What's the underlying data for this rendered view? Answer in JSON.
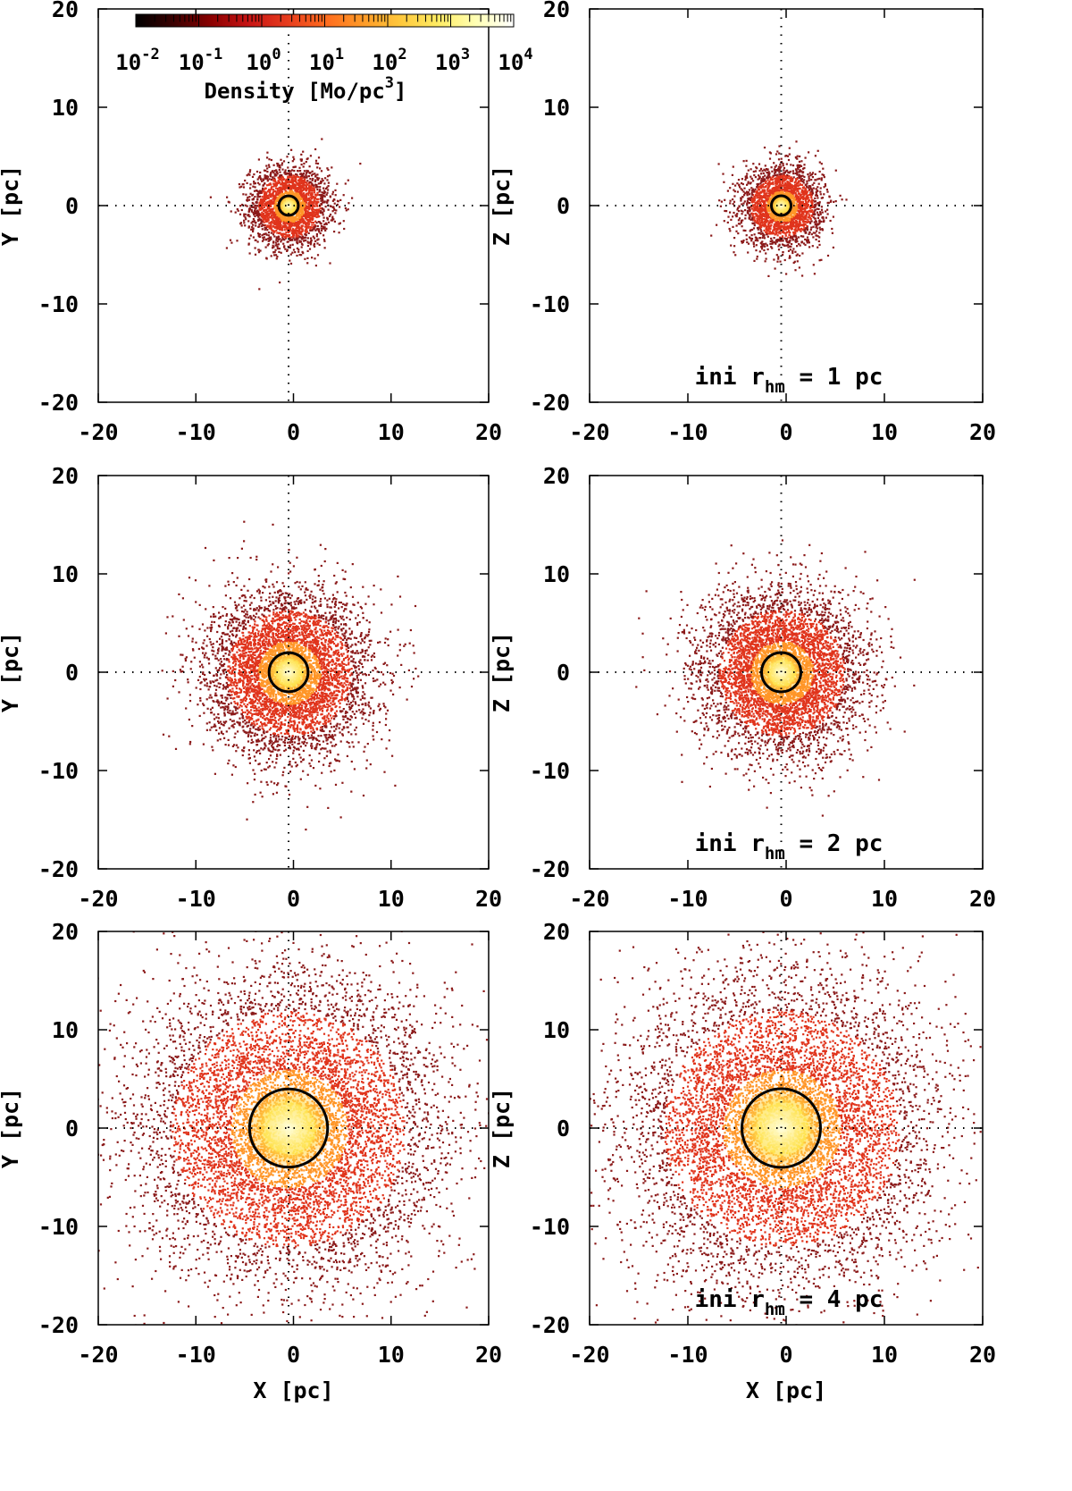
{
  "chart_data": [
    {
      "type": "scatter",
      "panel": "top-left",
      "xlabel": "",
      "ylabel": "Y [pc]",
      "xlim": [
        -20,
        20
      ],
      "ylim": [
        -20,
        20
      ],
      "xticks": [
        "-20",
        "-10",
        "0",
        "10",
        "20"
      ],
      "yticks": [
        "20",
        "10",
        "0",
        "-10",
        "-20"
      ],
      "dispersion_pc": 2.0,
      "half_mass_circle": {
        "center": [
          0,
          0
        ],
        "radius_pc": 1.0
      },
      "annotation": null
    },
    {
      "type": "scatter",
      "panel": "top-right",
      "xlabel": "",
      "ylabel": "Z [pc]",
      "xlim": [
        -20,
        20
      ],
      "ylim": [
        -20,
        20
      ],
      "xticks": [
        "-20",
        "-10",
        "0",
        "10",
        "20"
      ],
      "yticks": [
        "20",
        "10",
        "0",
        "-10",
        "-20"
      ],
      "dispersion_pc": 2.0,
      "half_mass_circle": {
        "center": [
          0,
          0
        ],
        "radius_pc": 1.0
      },
      "annotation": {
        "prefix": "ini r",
        "subscript": "hm",
        "suffix": " = 1 pc"
      }
    },
    {
      "type": "scatter",
      "panel": "middle-left",
      "xlabel": "",
      "ylabel": "Y [pc]",
      "xlim": [
        -20,
        20
      ],
      "ylim": [
        -20,
        20
      ],
      "xticks": [
        "-20",
        "-10",
        "0",
        "10",
        "20"
      ],
      "yticks": [
        "20",
        "10",
        "0",
        "-10",
        "-20"
      ],
      "dispersion_pc": 4.0,
      "half_mass_circle": {
        "center": [
          0,
          0
        ],
        "radius_pc": 2.0
      },
      "annotation": null
    },
    {
      "type": "scatter",
      "panel": "middle-right",
      "xlabel": "",
      "ylabel": "Z [pc]",
      "xlim": [
        -20,
        20
      ],
      "ylim": [
        -20,
        20
      ],
      "xticks": [
        "-20",
        "-10",
        "0",
        "10",
        "20"
      ],
      "yticks": [
        "20",
        "10",
        "0",
        "-10",
        "-20"
      ],
      "dispersion_pc": 4.0,
      "half_mass_circle": {
        "center": [
          0,
          0
        ],
        "radius_pc": 2.0
      },
      "annotation": {
        "prefix": "ini r",
        "subscript": "hm",
        "suffix": " = 2 pc"
      }
    },
    {
      "type": "scatter",
      "panel": "bottom-left",
      "xlabel": "X [pc]",
      "ylabel": "Y [pc]",
      "xlim": [
        -20,
        20
      ],
      "ylim": [
        -20,
        20
      ],
      "xticks": [
        "-20",
        "-10",
        "0",
        "10",
        "20"
      ],
      "yticks": [
        "20",
        "10",
        "0",
        "-10",
        "-20"
      ],
      "dispersion_pc": 7.5,
      "half_mass_circle": {
        "center": [
          0,
          0
        ],
        "radius_pc": 4.0
      },
      "annotation": null
    },
    {
      "type": "scatter",
      "panel": "bottom-right",
      "xlabel": "X [pc]",
      "ylabel": "Z [pc]",
      "xlim": [
        -20,
        20
      ],
      "ylim": [
        -20,
        20
      ],
      "xticks": [
        "-20",
        "-10",
        "0",
        "10",
        "20"
      ],
      "yticks": [
        "20",
        "10",
        "0",
        "-10",
        "-20"
      ],
      "dispersion_pc": 7.5,
      "half_mass_circle": {
        "center": [
          0,
          0
        ],
        "radius_pc": 4.0
      },
      "annotation": {
        "prefix": "ini r",
        "subscript": "hm",
        "suffix": " = 4 pc"
      }
    }
  ],
  "colorbar": {
    "title_prefix": "Density [Mo/pc",
    "title_sup": "3",
    "title_suffix": "]",
    "colors": [
      "#000000",
      "#3a0000",
      "#8b0000",
      "#c81414",
      "#e63c1e",
      "#ff6a1e",
      "#ff9a28",
      "#ffc83c",
      "#ffec64",
      "#ffffb4",
      "#ffffff"
    ],
    "labels": [
      {
        "base": "10",
        "exp": "-2"
      },
      {
        "base": "10",
        "exp": "-1"
      },
      {
        "base": "10",
        "exp": "0"
      },
      {
        "base": "10",
        "exp": "1"
      },
      {
        "base": "10",
        "exp": "2"
      },
      {
        "base": "10",
        "exp": "3"
      },
      {
        "base": "10",
        "exp": "4"
      }
    ]
  },
  "colors": {
    "dot_outer": "#8b1a1a",
    "dot_mid": "#e0341c",
    "dot_inner": "#ff9628",
    "dot_core": "#ffe14a",
    "zero_line": "#000000",
    "circle": "#000000"
  }
}
